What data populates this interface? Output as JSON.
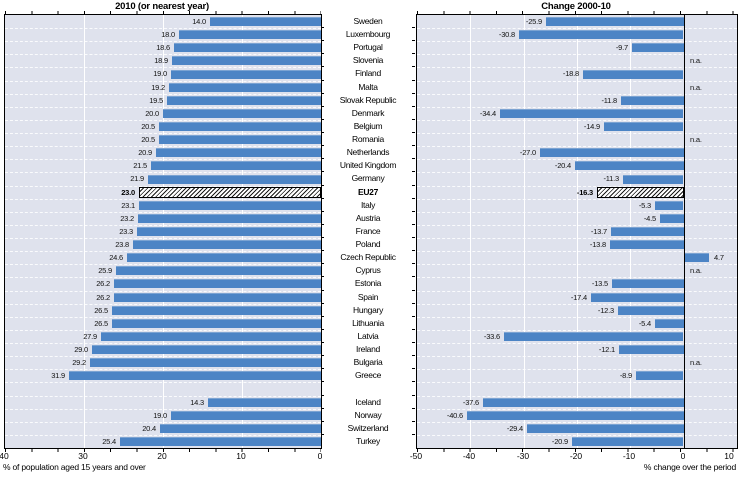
{
  "chart_data": {
    "type": "bar",
    "orientation": "horizontal",
    "na_label": "n.a.",
    "panels": [
      {
        "id": "level-2010",
        "title": "2010 (or nearest year)",
        "xlabel": "% of population aged 15 years and over",
        "xlim": [
          40,
          0
        ],
        "ticks": [
          40,
          30,
          20,
          10,
          0
        ],
        "reversed": true,
        "grid": true,
        "legend": "none"
      },
      {
        "id": "change-2000-10",
        "title": "Change 2000-10",
        "xlabel": "% change over the period",
        "xlim": [
          -50,
          10
        ],
        "ticks": [
          -50,
          -40,
          -30,
          -20,
          -10,
          0,
          10
        ],
        "zero_line": 0,
        "grid": true,
        "legend": "none"
      }
    ],
    "rows": [
      {
        "country": "Sweden",
        "value_2010": 14.0,
        "value_label": "14.0",
        "change": -25.9,
        "change_label": "-25.9"
      },
      {
        "country": "Luxembourg",
        "value_2010": 18.0,
        "value_label": "18.0",
        "change": -30.8,
        "change_label": "-30.8"
      },
      {
        "country": "Portugal",
        "value_2010": 18.6,
        "value_label": "18.6",
        "change": -9.7,
        "change_label": "-9.7"
      },
      {
        "country": "Slovenia",
        "value_2010": 18.9,
        "value_label": "18.9",
        "change": null,
        "change_label": "n.a."
      },
      {
        "country": "Finland",
        "value_2010": 19.0,
        "value_label": "19.0",
        "change": -18.8,
        "change_label": "-18.8"
      },
      {
        "country": "Malta",
        "value_2010": 19.2,
        "value_label": "19.2",
        "change": null,
        "change_label": "n.a."
      },
      {
        "country": "Slovak Republic",
        "value_2010": 19.5,
        "value_label": "19.5",
        "change": -11.8,
        "change_label": "-11.8"
      },
      {
        "country": "Denmark",
        "value_2010": 20.0,
        "value_label": "20.0",
        "change": -34.4,
        "change_label": "-34.4"
      },
      {
        "country": "Belgium",
        "value_2010": 20.5,
        "value_label": "20.5",
        "change": -14.9,
        "change_label": "-14.9"
      },
      {
        "country": "Romania",
        "value_2010": 20.5,
        "value_label": "20.5",
        "change": null,
        "change_label": "n.a."
      },
      {
        "country": "Netherlands",
        "value_2010": 20.9,
        "value_label": "20.9",
        "change": -27.0,
        "change_label": "-27.0"
      },
      {
        "country": "United Kingdom",
        "value_2010": 21.5,
        "value_label": "21.5",
        "change": -20.4,
        "change_label": "-20.4"
      },
      {
        "country": "Germany",
        "value_2010": 21.9,
        "value_label": "21.9",
        "change": -11.3,
        "change_label": "-11.3"
      },
      {
        "country": "EU27",
        "value_2010": 23.0,
        "value_label": "23.0",
        "change": -16.3,
        "change_label": "-16.3",
        "highlight": true,
        "bold": true
      },
      {
        "country": "Italy",
        "value_2010": 23.1,
        "value_label": "23.1",
        "change": -5.3,
        "change_label": "-5.3"
      },
      {
        "country": "Austria",
        "value_2010": 23.2,
        "value_label": "23.2",
        "change": -4.5,
        "change_label": "-4.5"
      },
      {
        "country": "France",
        "value_2010": 23.3,
        "value_label": "23.3",
        "change": -13.7,
        "change_label": "-13.7"
      },
      {
        "country": "Poland",
        "value_2010": 23.8,
        "value_label": "23.8",
        "change": -13.8,
        "change_label": "-13.8"
      },
      {
        "country": "Czech Republic",
        "value_2010": 24.6,
        "value_label": "24.6",
        "change": 4.7,
        "change_label": "4.7"
      },
      {
        "country": "Cyprus",
        "value_2010": 25.9,
        "value_label": "25.9",
        "change": null,
        "change_label": "n.a."
      },
      {
        "country": "Estonia",
        "value_2010": 26.2,
        "value_label": "26.2",
        "change": -13.5,
        "change_label": "-13.5"
      },
      {
        "country": "Spain",
        "value_2010": 26.2,
        "value_label": "26.2",
        "change": -17.4,
        "change_label": "-17.4"
      },
      {
        "country": "Hungary",
        "value_2010": 26.5,
        "value_label": "26.5",
        "change": -12.3,
        "change_label": "-12.3"
      },
      {
        "country": "Lithuania",
        "value_2010": 26.5,
        "value_label": "26.5",
        "change": -5.4,
        "change_label": "-5.4"
      },
      {
        "country": "Latvia",
        "value_2010": 27.9,
        "value_label": "27.9",
        "change": -33.6,
        "change_label": "-33.6"
      },
      {
        "country": "Ireland",
        "value_2010": 29.0,
        "value_label": "29.0",
        "change": -12.1,
        "change_label": "-12.1"
      },
      {
        "country": "Bulgaria",
        "value_2010": 29.2,
        "value_label": "29.2",
        "change": null,
        "change_label": "n.a."
      },
      {
        "country": "Greece",
        "value_2010": 31.9,
        "value_label": "31.9",
        "change": -8.9,
        "change_label": "-8.9"
      },
      {
        "spacer": true
      },
      {
        "country": "Iceland",
        "value_2010": 14.3,
        "value_label": "14.3",
        "change": -37.6,
        "change_label": "-37.6"
      },
      {
        "country": "Norway",
        "value_2010": 19.0,
        "value_label": "19.0",
        "change": -40.6,
        "change_label": "-40.6"
      },
      {
        "country": "Switzerland",
        "value_2010": 20.4,
        "value_label": "20.4",
        "change": -29.4,
        "change_label": "-29.4"
      },
      {
        "country": "Turkey",
        "value_2010": 25.4,
        "value_label": "25.4",
        "change": -20.9,
        "change_label": "-20.9"
      }
    ]
  },
  "colors": {
    "bar": "#4c84c5",
    "bar_top_highlight": "#7ba3d2",
    "plot_background": "#dfe2ed",
    "gridline": "#ffffff",
    "border": "#000000",
    "hatch_foreground": "#1a1a1a",
    "hatch_background": "#ffffff",
    "text": "#000000"
  }
}
